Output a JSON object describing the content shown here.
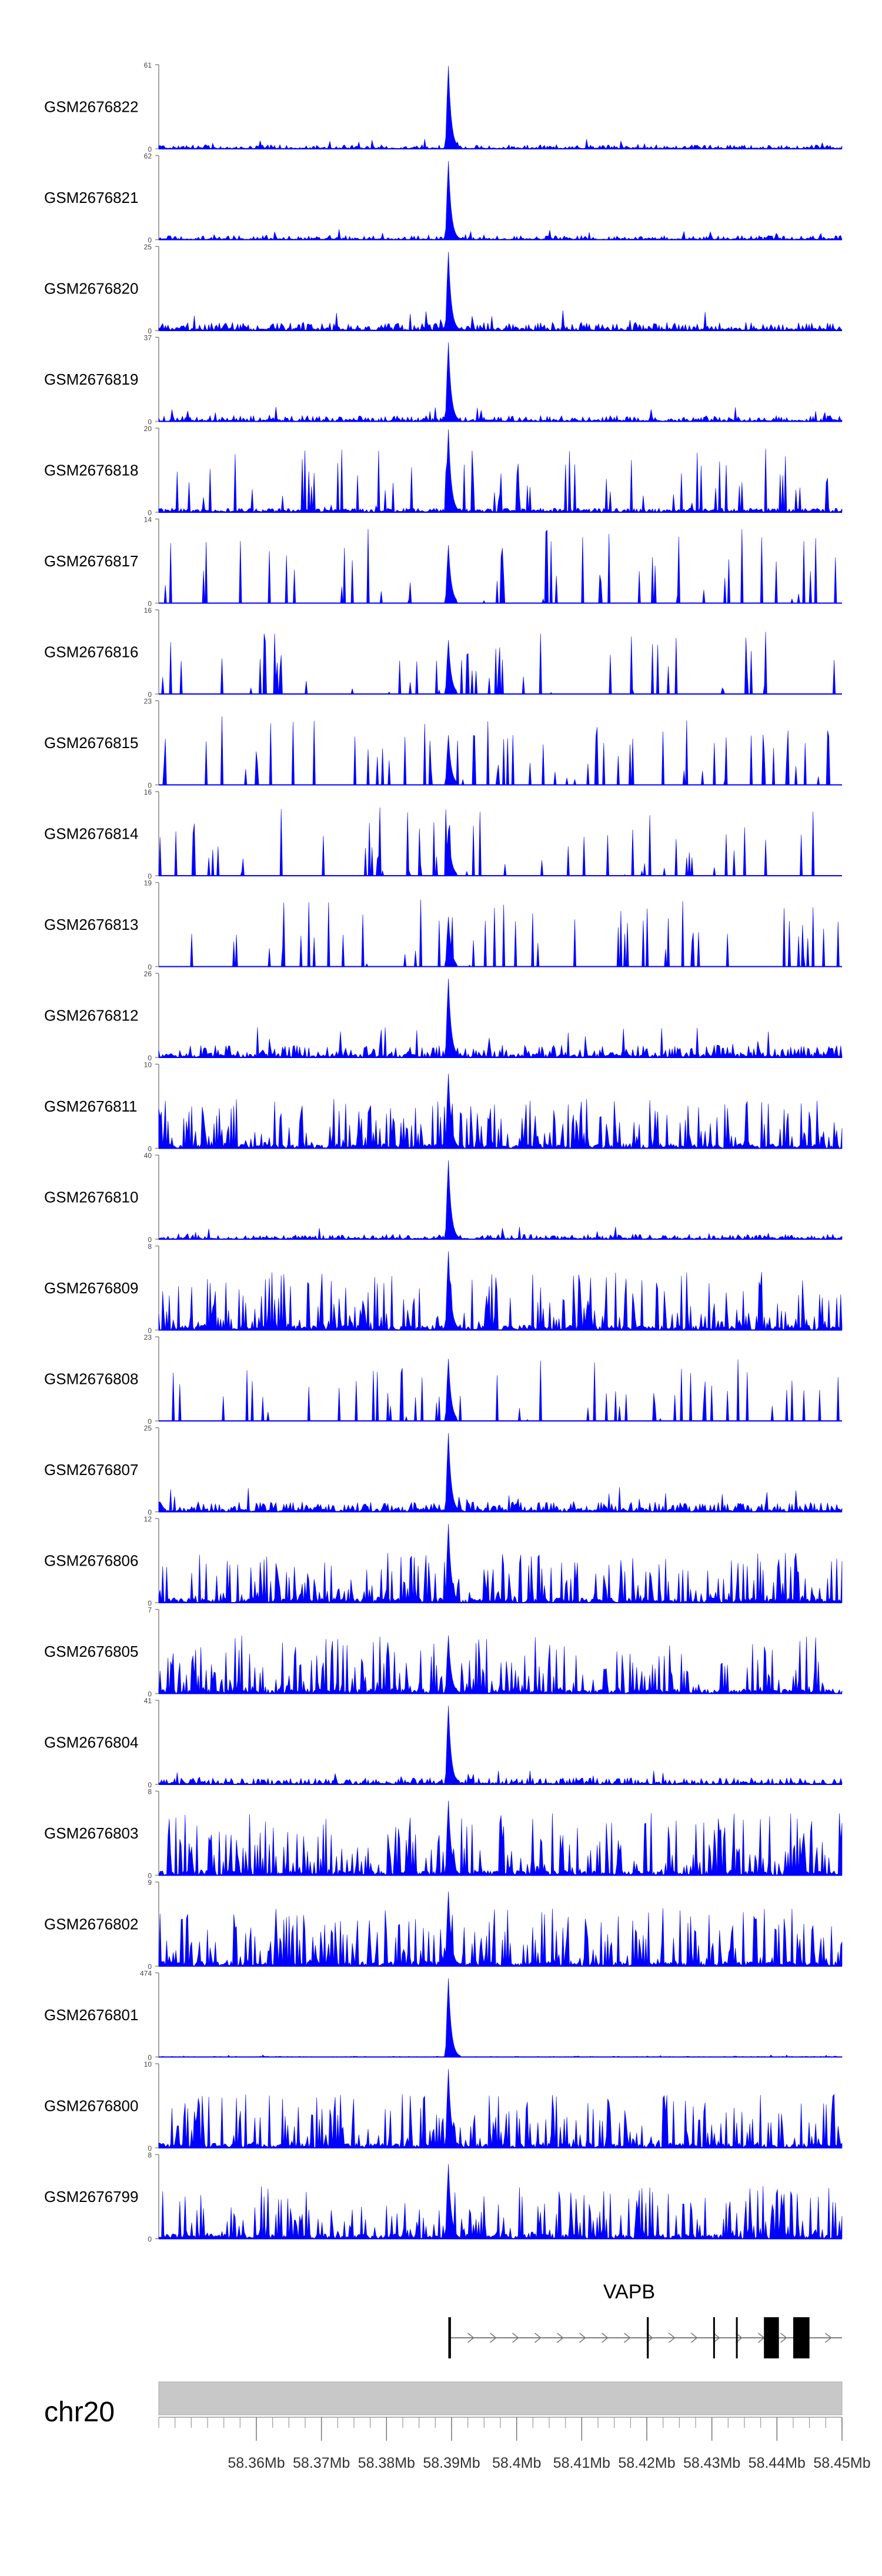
{
  "chart_data": {
    "type": "area",
    "chromosome": "chr20",
    "xlim": [
      58.345,
      58.45
    ],
    "x_ticks": [
      58.36,
      58.37,
      58.38,
      58.39,
      58.4,
      58.41,
      58.42,
      58.43,
      58.44,
      58.45
    ],
    "x_tick_labels": [
      "58.36Mb",
      "58.37Mb",
      "58.38Mb",
      "58.39Mb",
      "58.4Mb",
      "58.41Mb",
      "58.42Mb",
      "58.43Mb",
      "58.44Mb",
      "58.45Mb"
    ],
    "colors": {
      "signal": "#0000ff",
      "gene": "#000000",
      "ideogram": "#c8c8c8",
      "axis": "#888888"
    },
    "peak_position": 58.3895,
    "tracks": [
      {
        "name": "GSM2676822",
        "ymax": 61,
        "ymin_label": "0",
        "profile": "peak",
        "bg": 0.05,
        "peak": 1.0
      },
      {
        "name": "GSM2676821",
        "ymax": 62,
        "ymin_label": "0",
        "profile": "peak",
        "bg": 0.05,
        "peak": 0.95
      },
      {
        "name": "GSM2676820",
        "ymax": 25,
        "ymin_label": "0",
        "profile": "peak",
        "bg": 0.1,
        "peak": 0.95
      },
      {
        "name": "GSM2676819",
        "ymax": 37,
        "ymin_label": "0",
        "profile": "peak",
        "bg": 0.07,
        "peak": 0.95
      },
      {
        "name": "GSM2676818",
        "ymax": 20,
        "ymin_label": "0",
        "profile": "mixed",
        "bg": 0.35,
        "peak": 1.0
      },
      {
        "name": "GSM2676817",
        "ymax": 14,
        "ymin_label": "0",
        "profile": "sparse",
        "bg": 0.6,
        "peak": 0.7
      },
      {
        "name": "GSM2676816",
        "ymax": 16,
        "ymin_label": "0",
        "profile": "sparse",
        "bg": 0.5,
        "peak": 0.65
      },
      {
        "name": "GSM2676815",
        "ymax": 23,
        "ymin_label": "0",
        "profile": "sparse",
        "bg": 0.55,
        "peak": 0.6
      },
      {
        "name": "GSM2676814",
        "ymax": 16,
        "ymin_label": "0",
        "profile": "sparse",
        "bg": 0.55,
        "peak": 0.55
      },
      {
        "name": "GSM2676813",
        "ymax": 19,
        "ymin_label": "0",
        "profile": "sparse",
        "bg": 0.55,
        "peak": 0.6
      },
      {
        "name": "GSM2676812",
        "ymax": 26,
        "ymin_label": "0",
        "profile": "peak",
        "bg": 0.15,
        "peak": 0.95
      },
      {
        "name": "GSM2676811",
        "ymax": 10,
        "ymin_label": "0",
        "profile": "dense",
        "bg": 0.6,
        "peak": 0.9
      },
      {
        "name": "GSM2676810",
        "ymax": 40,
        "ymin_label": "0",
        "profile": "peak",
        "bg": 0.06,
        "peak": 0.95
      },
      {
        "name": "GSM2676809",
        "ymax": 8,
        "ymin_label": "0",
        "profile": "dense",
        "bg": 0.7,
        "peak": 0.95
      },
      {
        "name": "GSM2676808",
        "ymax": 23,
        "ymin_label": "0",
        "profile": "sparse",
        "bg": 0.5,
        "peak": 0.75
      },
      {
        "name": "GSM2676807",
        "ymax": 25,
        "ymin_label": "0",
        "profile": "peak",
        "bg": 0.12,
        "peak": 0.95
      },
      {
        "name": "GSM2676806",
        "ymax": 12,
        "ymin_label": "0",
        "profile": "dense",
        "bg": 0.6,
        "peak": 0.95
      },
      {
        "name": "GSM2676805",
        "ymax": 7,
        "ymin_label": "0",
        "profile": "dense",
        "bg": 0.7,
        "peak": 0.7
      },
      {
        "name": "GSM2676804",
        "ymax": 41,
        "ymin_label": "0",
        "profile": "peak",
        "bg": 0.08,
        "peak": 0.95
      },
      {
        "name": "GSM2676803",
        "ymax": 8,
        "ymin_label": "0",
        "profile": "dense",
        "bg": 0.75,
        "peak": 0.9
      },
      {
        "name": "GSM2676802",
        "ymax": 9,
        "ymin_label": "0",
        "profile": "dense",
        "bg": 0.7,
        "peak": 0.9
      },
      {
        "name": "GSM2676801",
        "ymax": 474,
        "ymin_label": "0",
        "profile": "peak",
        "bg": 0.01,
        "peak": 0.95
      },
      {
        "name": "GSM2676800",
        "ymax": 10,
        "ymin_label": "0",
        "profile": "dense",
        "bg": 0.65,
        "peak": 0.95
      },
      {
        "name": "GSM2676799",
        "ymax": 8,
        "ymin_label": "0",
        "profile": "dense",
        "bg": 0.65,
        "peak": 0.9
      }
    ],
    "gene": {
      "name": "VAPB",
      "strand": "+",
      "start": 58.3895,
      "end": 58.45,
      "exons": [
        [
          58.3895,
          58.3899
        ],
        [
          58.42,
          58.4203
        ],
        [
          58.4302,
          58.4304
        ],
        [
          58.4337,
          58.4339
        ],
        [
          58.438,
          58.4403
        ],
        [
          58.4425,
          58.445
        ]
      ]
    }
  }
}
